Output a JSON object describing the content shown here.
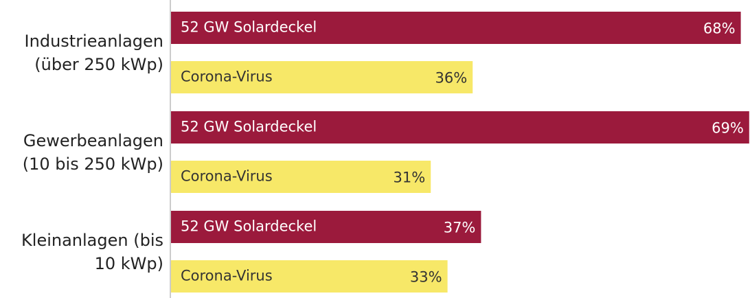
{
  "chart_data": {
    "type": "bar",
    "orientation": "horizontal",
    "categories": [
      "Industrieanlagen (über 250 kWp)",
      "Gewerbeanlagen (10 bis 250 kWp)",
      "Kleinanlagen (bis 10 kWp)"
    ],
    "series": [
      {
        "name": "52 GW Solardeckel",
        "color": "#9b1a3c",
        "values": [
          68,
          69,
          37
        ],
        "value_labels": [
          "68%",
          "69%",
          "37%"
        ]
      },
      {
        "name": "Corona-Virus",
        "color": "#f7e868",
        "values": [
          36,
          31,
          33
        ],
        "value_labels": [
          "36%",
          "31%",
          "33%"
        ]
      }
    ]
  }
}
